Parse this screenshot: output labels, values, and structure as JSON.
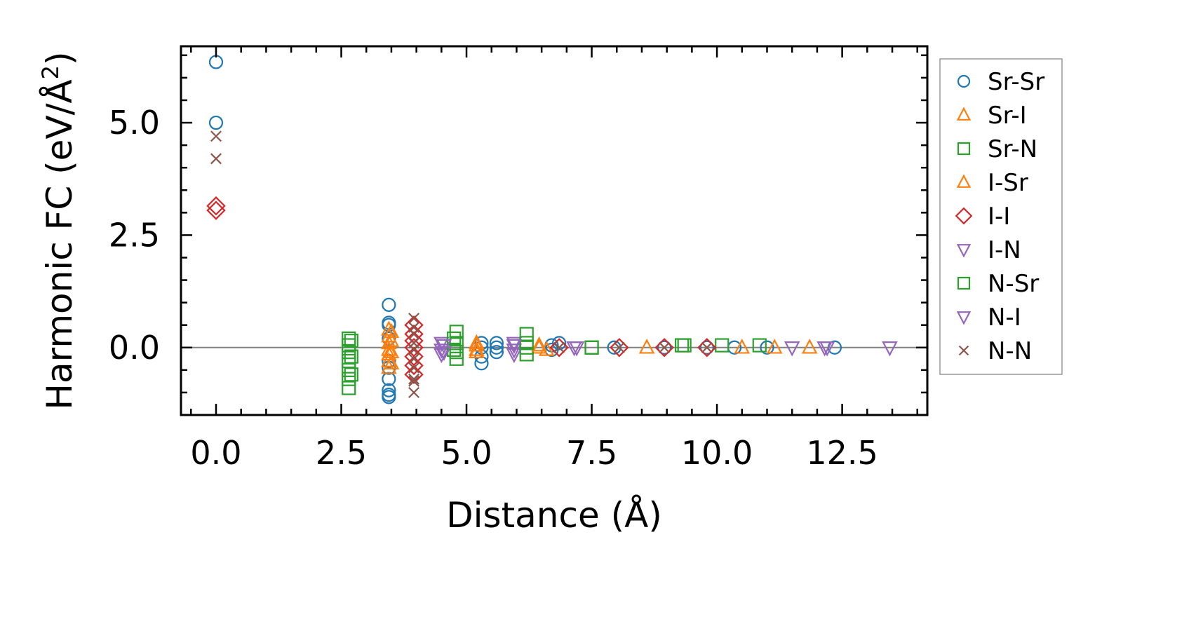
{
  "chart_data": {
    "type": "scatter",
    "xlabel": "Distance (Å)",
    "ylabel_prefix": "Harmonic FC (eV/Å",
    "ylabel_sup": "2",
    "ylabel_suffix": ")",
    "xlim": [
      -0.7,
      14.2
    ],
    "ylim": [
      -1.5,
      6.7
    ],
    "xticks": [
      0.0,
      2.5,
      5.0,
      7.5,
      10.0,
      12.5
    ],
    "xtick_labels": [
      "0.0",
      "2.5",
      "5.0",
      "7.5",
      "10.0",
      "12.5"
    ],
    "yticks": [
      0.0,
      2.5,
      5.0
    ],
    "ytick_labels": [
      "0.0",
      "2.5",
      "5.0"
    ],
    "zero_line": 0.0,
    "legend_position": "outside-right",
    "series": [
      {
        "name": "Sr-Sr",
        "marker": "circle",
        "color": "#1f77b4",
        "points": [
          [
            0,
            6.35
          ],
          [
            0,
            5.0
          ],
          [
            3.45,
            0.95
          ],
          [
            3.45,
            0.55
          ],
          [
            3.45,
            0.5
          ],
          [
            3.45,
            0.2
          ],
          [
            3.45,
            -0.3
          ],
          [
            3.45,
            -0.45
          ],
          [
            3.45,
            -0.7
          ],
          [
            3.45,
            -0.95
          ],
          [
            3.45,
            -1.05
          ],
          [
            3.45,
            -1.1
          ],
          [
            5.3,
            0.1
          ],
          [
            5.3,
            0.0
          ],
          [
            5.3,
            -0.2
          ],
          [
            5.3,
            -0.35
          ],
          [
            5.6,
            0.1
          ],
          [
            5.6,
            0.0
          ],
          [
            5.6,
            -0.1
          ],
          [
            6.7,
            0.05
          ],
          [
            6.7,
            -0.05
          ],
          [
            6.85,
            0.1
          ],
          [
            7.95,
            0.0
          ],
          [
            8.95,
            0.0
          ],
          [
            9.8,
            0.0
          ],
          [
            10.35,
            0.0
          ],
          [
            11.0,
            0.0
          ],
          [
            12.35,
            0.0
          ]
        ]
      },
      {
        "name": "Sr-I",
        "marker": "triangle-up",
        "color": "#ff7f0e",
        "points": [
          [
            3.45,
            0.4
          ],
          [
            3.45,
            0.25
          ],
          [
            3.45,
            0.1
          ],
          [
            3.45,
            -0.05
          ],
          [
            3.45,
            -0.15
          ],
          [
            3.45,
            -0.3
          ],
          [
            3.45,
            -0.45
          ],
          [
            5.2,
            0.05
          ],
          [
            5.2,
            -0.05
          ],
          [
            6.45,
            0.0
          ],
          [
            8.6,
            0.0
          ],
          [
            10.5,
            0.0
          ],
          [
            11.15,
            0.0
          ],
          [
            11.85,
            0.0
          ]
        ]
      },
      {
        "name": "Sr-N",
        "marker": "square",
        "color": "#2ca02c",
        "points": [
          [
            2.65,
            0.2
          ],
          [
            2.65,
            0.05
          ],
          [
            2.65,
            -0.1
          ],
          [
            2.65,
            -0.3
          ],
          [
            2.65,
            -0.5
          ],
          [
            2.65,
            -0.7
          ],
          [
            2.65,
            -0.9
          ],
          [
            4.8,
            0.35
          ],
          [
            4.8,
            0.1
          ],
          [
            4.8,
            -0.1
          ],
          [
            4.8,
            -0.25
          ],
          [
            6.2,
            0.3
          ],
          [
            6.2,
            0.0
          ],
          [
            6.2,
            -0.15
          ],
          [
            7.5,
            0.0
          ],
          [
            9.35,
            0.05
          ],
          [
            10.1,
            0.05
          ],
          [
            10.85,
            0.05
          ]
        ]
      },
      {
        "name": "I-Sr",
        "marker": "triangle-up",
        "color": "#ff7f0e",
        "points": [
          [
            3.5,
            0.35
          ],
          [
            3.5,
            0.15
          ],
          [
            3.5,
            -0.1
          ],
          [
            3.5,
            -0.35
          ],
          [
            5.2,
            0.1
          ],
          [
            5.2,
            -0.1
          ],
          [
            6.45,
            0.05
          ],
          [
            6.6,
            -0.05
          ]
        ]
      },
      {
        "name": "I-I",
        "marker": "diamond",
        "color": "#d62728",
        "points": [
          [
            0,
            3.15
          ],
          [
            0,
            3.05
          ],
          [
            3.95,
            0.5
          ],
          [
            3.95,
            0.3
          ],
          [
            3.95,
            0.15
          ],
          [
            3.95,
            0.0
          ],
          [
            3.95,
            -0.2
          ],
          [
            3.95,
            -0.4
          ],
          [
            3.95,
            -0.6
          ],
          [
            6.85,
            0.0
          ],
          [
            8.05,
            0.0
          ],
          [
            8.95,
            0.0
          ],
          [
            9.8,
            0.0
          ]
        ]
      },
      {
        "name": "I-N",
        "marker": "triangle-down",
        "color": "#9467bd",
        "points": [
          [
            4.5,
            0.1
          ],
          [
            4.5,
            -0.05
          ],
          [
            4.5,
            -0.15
          ],
          [
            5.95,
            0.1
          ],
          [
            5.95,
            -0.05
          ],
          [
            5.95,
            -0.15
          ],
          [
            7.2,
            0.0
          ],
          [
            11.5,
            0.0
          ],
          [
            12.15,
            0.0
          ],
          [
            13.45,
            0.0
          ]
        ]
      },
      {
        "name": "N-Sr",
        "marker": "square",
        "color": "#2ca02c",
        "points": [
          [
            2.7,
            0.15
          ],
          [
            2.7,
            -0.2
          ],
          [
            2.7,
            -0.6
          ],
          [
            4.75,
            0.2
          ],
          [
            4.75,
            -0.05
          ],
          [
            6.2,
            0.1
          ],
          [
            7.5,
            0.0
          ],
          [
            9.3,
            0.05
          ]
        ]
      },
      {
        "name": "N-I",
        "marker": "triangle-down",
        "color": "#9467bd",
        "points": [
          [
            4.55,
            0.05
          ],
          [
            4.55,
            -0.1
          ],
          [
            5.95,
            0.05
          ],
          [
            7.15,
            0.0
          ],
          [
            12.2,
            0.0
          ]
        ]
      },
      {
        "name": "N-N",
        "marker": "x",
        "color": "#8c564b",
        "points": [
          [
            0,
            4.7
          ],
          [
            0,
            4.2
          ],
          [
            3.95,
            0.65
          ],
          [
            3.95,
            0.45
          ],
          [
            3.95,
            0.3
          ],
          [
            3.95,
            0.1
          ],
          [
            3.95,
            -0.05
          ],
          [
            3.95,
            -0.25
          ],
          [
            3.95,
            -0.45
          ],
          [
            3.95,
            -0.7
          ],
          [
            3.95,
            -0.75
          ],
          [
            3.95,
            -1.0
          ],
          [
            6.85,
            0.0
          ],
          [
            8.05,
            0.0
          ],
          [
            8.95,
            0.0
          ],
          [
            9.8,
            0.0
          ]
        ]
      }
    ]
  }
}
